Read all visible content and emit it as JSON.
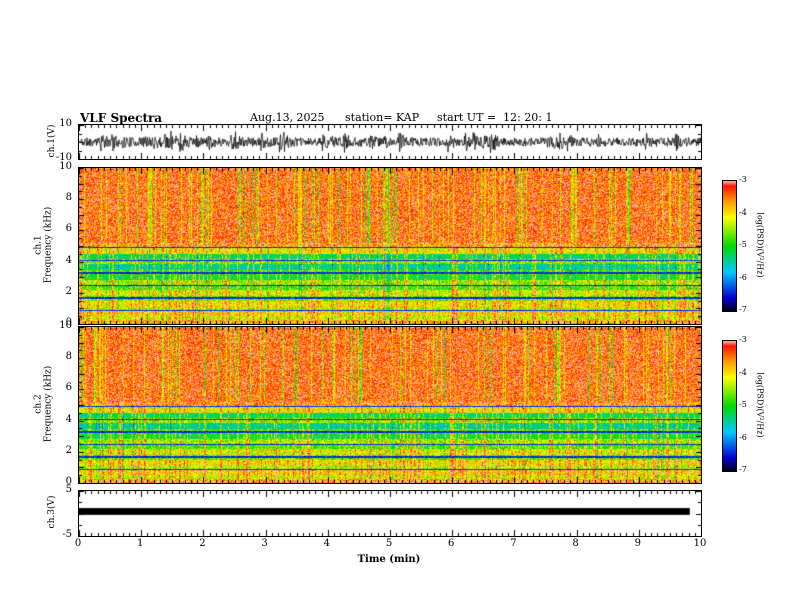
{
  "header": {
    "title": "VLF Spectra",
    "date": "Aug.13, 2025",
    "station": "station= KAP",
    "start_ut": "start UT =  12: 20: 1"
  },
  "xaxis": {
    "label": "Time (min)",
    "range": [
      0,
      10
    ],
    "ticks": [
      "0",
      "1",
      "2",
      "3",
      "4",
      "5",
      "6",
      "7",
      "8",
      "9",
      "10"
    ]
  },
  "colorbar": {
    "label": "log(PSD)(V²/Hz)",
    "ticks": [
      "-3",
      "-4",
      "-5",
      "-6",
      "-7"
    ],
    "value_range": [
      -7,
      -3
    ],
    "gradient_stops": [
      {
        "p": 0.0,
        "c": "#000018"
      },
      {
        "p": 0.1,
        "c": "#0000d0"
      },
      {
        "p": 0.3,
        "c": "#00c8ff"
      },
      {
        "p": 0.5,
        "c": "#00d800"
      },
      {
        "p": 0.72,
        "c": "#ffff00"
      },
      {
        "p": 0.86,
        "c": "#ff8800"
      },
      {
        "p": 0.96,
        "c": "#ff1500"
      },
      {
        "p": 1.0,
        "c": "#ffb0b0"
      }
    ]
  },
  "panels": {
    "ch1_wave": {
      "ylabel": "ch.1(V)",
      "ylim": [
        -10,
        10
      ],
      "yticks": [
        "10",
        "-10"
      ]
    },
    "ch1_spec": {
      "ylabel_line1": "ch.1",
      "ylabel_line2": "Frequency (kHz)",
      "ylim": [
        0,
        10
      ],
      "yticks": [
        "10",
        "8",
        "6",
        "4",
        "2",
        "0"
      ]
    },
    "ch2_spec": {
      "ylabel_line1": "ch.2",
      "ylabel_line2": "Frequency (kHz)",
      "ylim": [
        0,
        10
      ],
      "yticks": [
        "10",
        "8",
        "6",
        "4",
        "2",
        "0"
      ]
    },
    "ch3_wave": {
      "ylabel": "ch.3(V)",
      "ylim": [
        -5,
        5
      ],
      "yticks": [
        "5",
        "-5"
      ]
    }
  },
  "chart_data": [
    {
      "type": "line",
      "panel": "ch1_wave",
      "ylabel": "ch.1(V)",
      "ylim": [
        -10,
        10
      ],
      "xlim": [
        0,
        10
      ],
      "description": "Broadband VLF receiver waveform: continuous noise of roughly +/-3 to +/-5 V with frequent impulsive bursts reaching +/-9 V across the full 10 minutes.",
      "noise_amp": 2.6,
      "burst_prob": 0.035,
      "burst_amp": 6.5,
      "seed": 11
    },
    {
      "type": "heatmap",
      "panel": "ch1_spec",
      "ylabel": "ch.1 Frequency (kHz)",
      "ylim": [
        0,
        10
      ],
      "xlim": [
        0,
        10
      ],
      "value_label": "log(PSD)(V²/Hz)",
      "value_range": [
        -7,
        -3
      ],
      "description": "Spectrogram 0-10 kHz over 10 min: intense (red, ~-3.4) power above ~5 kHz with dense vertical sferic streaks; banded green/cyan (-4.5 to -5.5) structure from 1-5 kHz; strong yellow/orange bands below 1.5 kHz; thin dark horizontal interference lines.",
      "bands": [
        [
          5.2,
          10,
          -3.35
        ],
        [
          4.9,
          5.2,
          -3.7
        ],
        [
          4.55,
          4.9,
          -4.15
        ],
        [
          4.2,
          4.55,
          -5.3
        ],
        [
          3.9,
          4.2,
          -4.6
        ],
        [
          3.5,
          3.9,
          -5.5
        ],
        [
          3.15,
          3.5,
          -4.8
        ],
        [
          2.85,
          3.15,
          -5.15
        ],
        [
          2.5,
          2.85,
          -4.5
        ],
        [
          2.2,
          2.5,
          -4.85
        ],
        [
          1.85,
          2.2,
          -4.3
        ],
        [
          1.5,
          1.85,
          -4.65
        ],
        [
          1.15,
          1.5,
          -4.05
        ],
        [
          0.85,
          1.15,
          -4.4
        ],
        [
          0.55,
          0.85,
          -3.95
        ],
        [
          0.3,
          0.55,
          -4.3
        ],
        [
          0.12,
          0.3,
          -3.8
        ],
        [
          0,
          0.12,
          -3.1
        ]
      ],
      "dark_lines_khz": [
        0.9,
        1.7,
        2.5,
        3.3,
        4.1,
        4.95
      ],
      "red_streak_prob": 0.3,
      "green_streak_prob": 0.1,
      "seed": 23
    },
    {
      "type": "heatmap",
      "panel": "ch2_spec",
      "ylabel": "ch.2 Frequency (kHz)",
      "ylim": [
        0,
        10
      ],
      "xlim": [
        0,
        10
      ],
      "value_label": "log(PSD)(V²/Hz)",
      "value_range": [
        -7,
        -3
      ],
      "description": "Second channel spectrogram with nearly identical banded structure and sferic activity as ch.1.",
      "bands": [
        [
          5.2,
          10,
          -3.35
        ],
        [
          4.9,
          5.2,
          -3.7
        ],
        [
          4.55,
          4.9,
          -4.15
        ],
        [
          4.2,
          4.55,
          -5.3
        ],
        [
          3.9,
          4.2,
          -4.6
        ],
        [
          3.5,
          3.9,
          -5.5
        ],
        [
          3.15,
          3.5,
          -4.8
        ],
        [
          2.85,
          3.15,
          -5.15
        ],
        [
          2.5,
          2.85,
          -4.5
        ],
        [
          2.2,
          2.5,
          -4.85
        ],
        [
          1.85,
          2.2,
          -4.3
        ],
        [
          1.5,
          1.85,
          -4.65
        ],
        [
          1.15,
          1.5,
          -4.05
        ],
        [
          0.85,
          1.15,
          -4.4
        ],
        [
          0.55,
          0.85,
          -3.95
        ],
        [
          0.3,
          0.55,
          -4.3
        ],
        [
          0.12,
          0.3,
          -3.8
        ],
        [
          0,
          0.12,
          -3.1
        ]
      ],
      "dark_lines_khz": [
        0.9,
        1.7,
        2.5,
        3.3,
        4.1,
        4.95
      ],
      "red_streak_prob": 0.3,
      "green_streak_prob": 0.1,
      "seed": 57
    },
    {
      "type": "line",
      "panel": "ch3_wave",
      "ylabel": "ch.3(V)",
      "ylim": [
        -5,
        5
      ],
      "xlim": [
        0,
        10
      ],
      "description": "Channel 3 is a flat saturated trace: a thick solid black band at roughly +0.5 to +1.2 V spanning the whole record.",
      "band_v": [
        -0.3,
        1.2
      ],
      "seed": 3
    }
  ]
}
